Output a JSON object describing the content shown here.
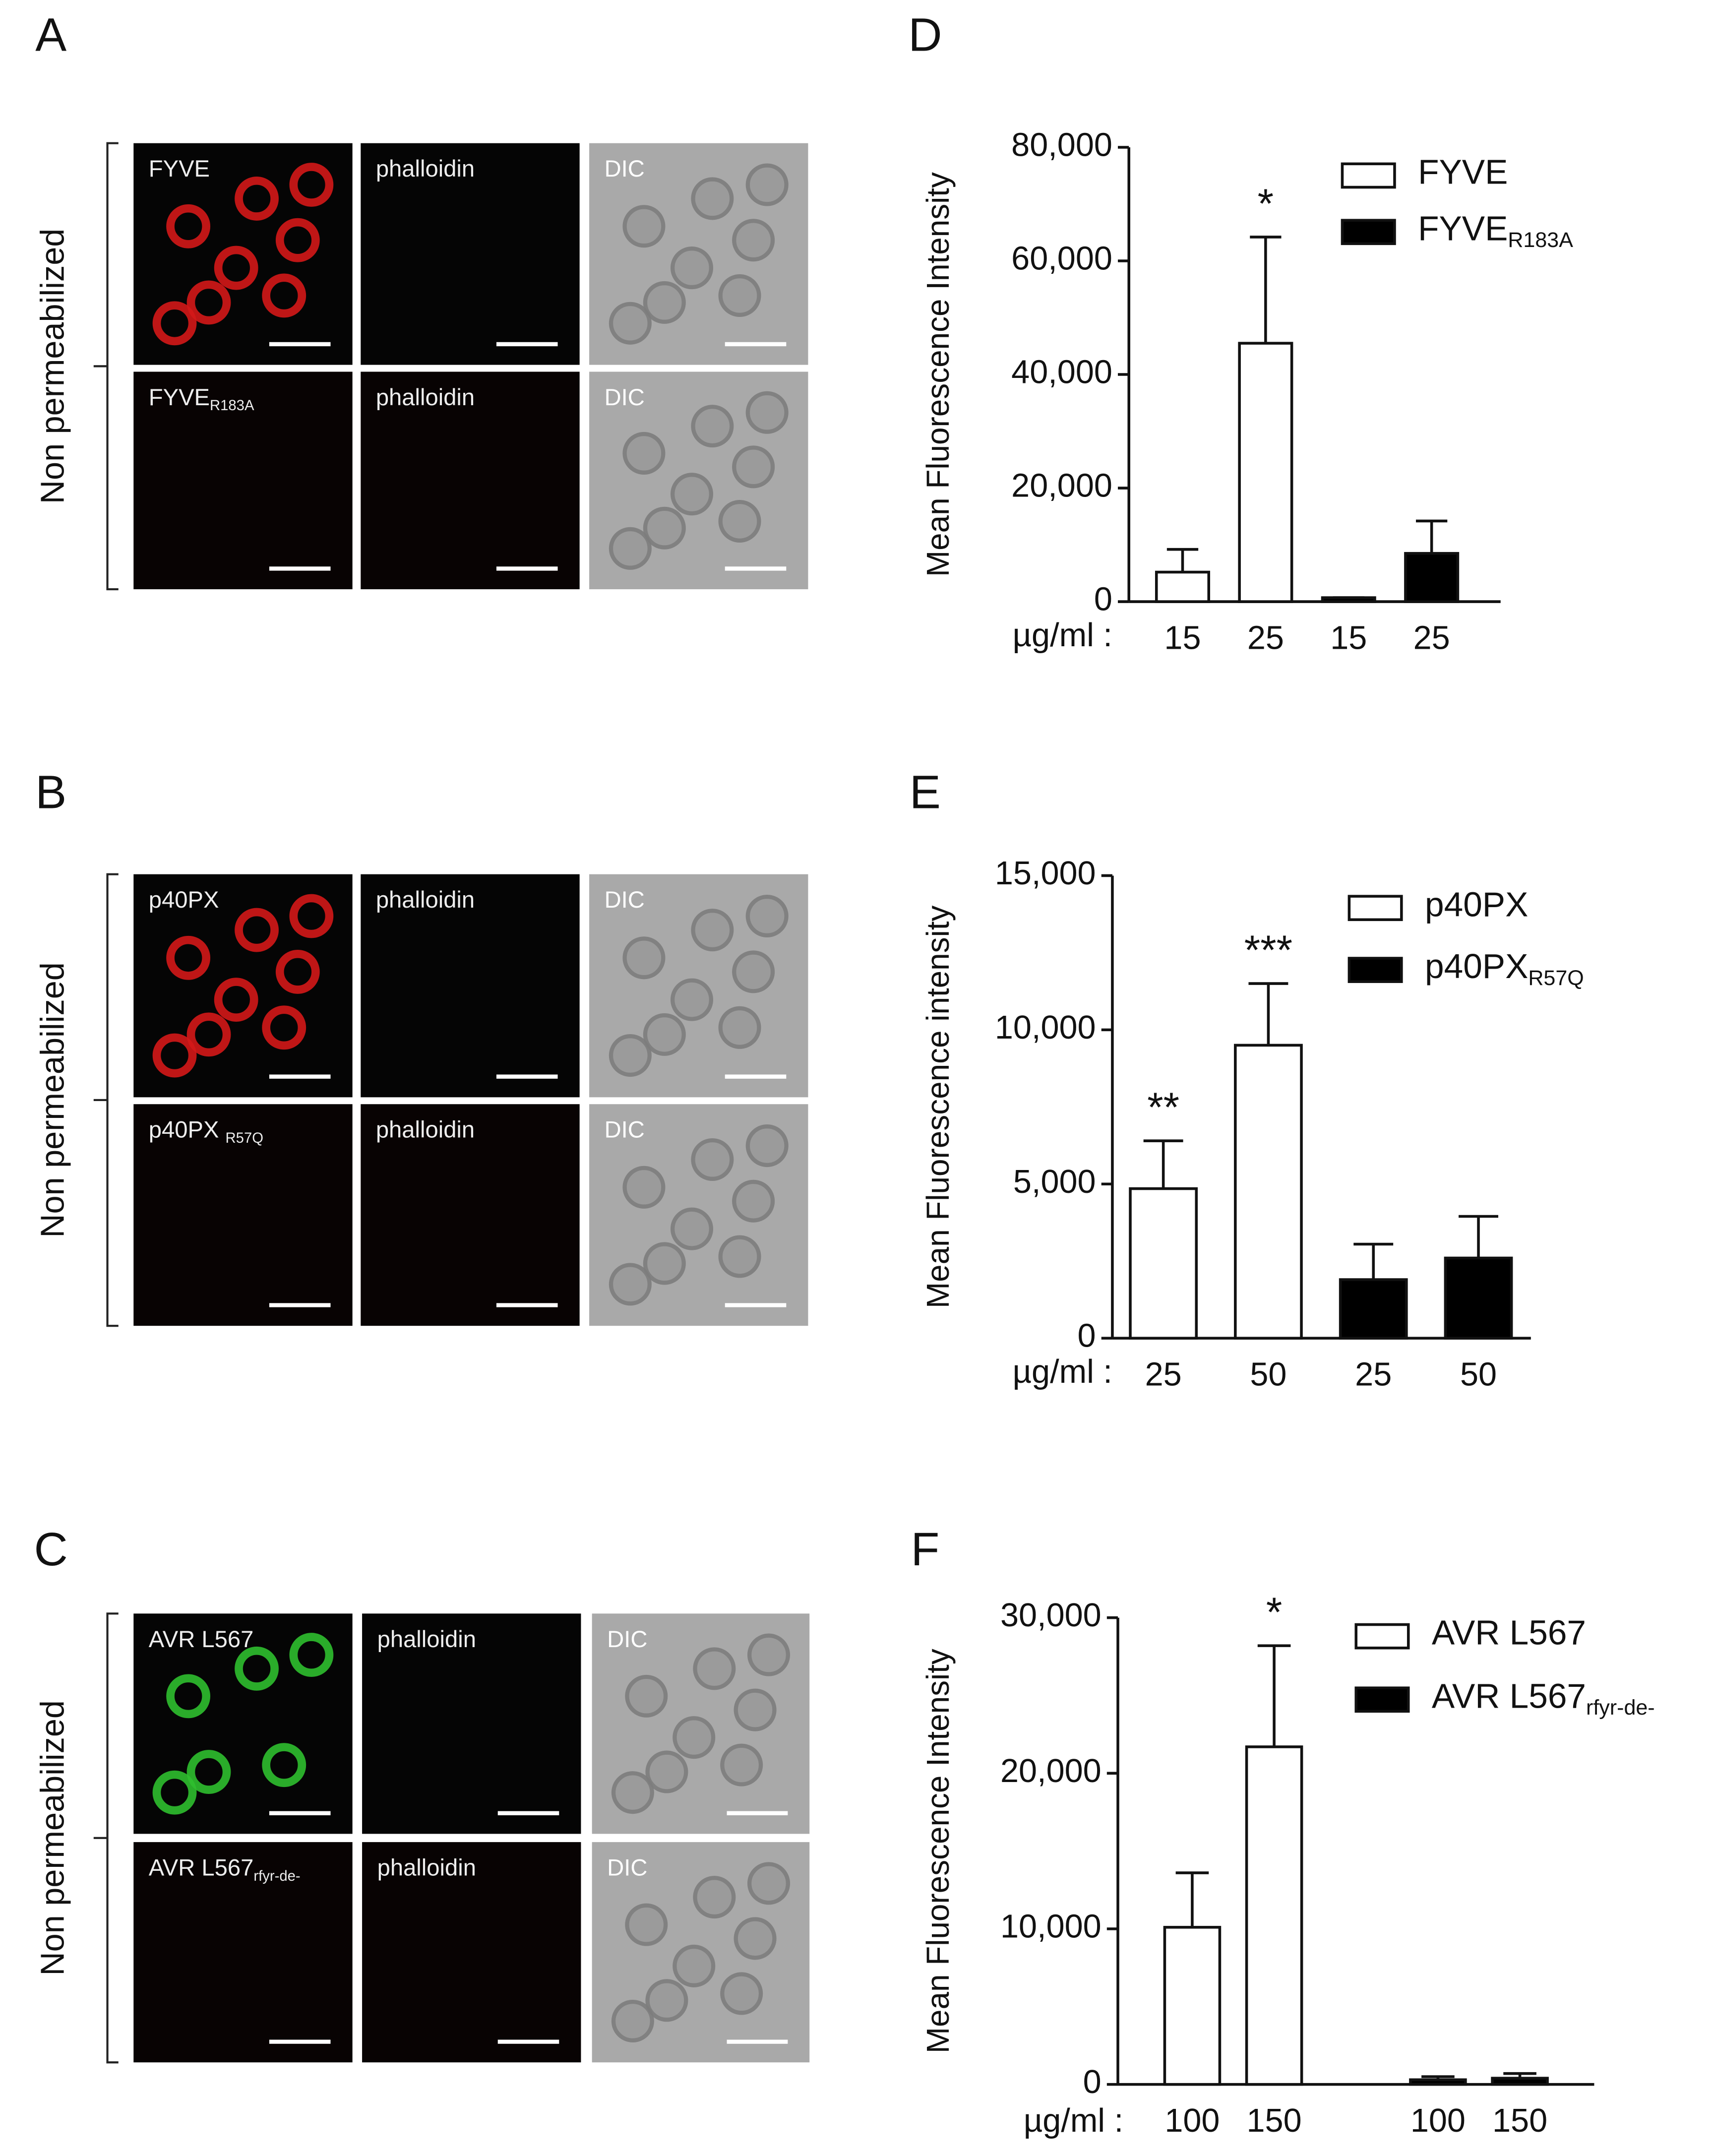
{
  "panel_letters": [
    "A",
    "B",
    "C",
    "D",
    "E",
    "F"
  ],
  "micrographs": [
    {
      "side_label": "Non permeabilized",
      "rows": [
        [
          {
            "text": "FYVE"
          },
          {
            "text": "phalloidin"
          },
          {
            "text": "DIC"
          }
        ],
        [
          {
            "text": "FYVE",
            "sub": "R183A"
          },
          {
            "text": "phalloidin"
          },
          {
            "text": "DIC"
          }
        ]
      ]
    },
    {
      "side_label": "Non permeabilized",
      "rows": [
        [
          {
            "text": "p40PX"
          },
          {
            "text": "phalloidin"
          },
          {
            "text": "DIC"
          }
        ],
        [
          {
            "text": "p40PX ",
            "sub": "R57Q"
          },
          {
            "text": "phalloidin"
          },
          {
            "text": "DIC"
          }
        ]
      ]
    },
    {
      "side_label": "Non permeabilized",
      "rows": [
        [
          {
            "text": "AVR L567"
          },
          {
            "text": "phalloidin"
          },
          {
            "text": "DIC"
          }
        ],
        [
          {
            "text": "AVR L567",
            "sub": "rfyr-de-"
          },
          {
            "text": "phalloidin"
          },
          {
            "text": "DIC"
          }
        ]
      ]
    }
  ],
  "chart_data": [
    {
      "type": "bar",
      "ylabel": "Mean Fluorescence Intensity",
      "xlabel": "µg/ml :",
      "categories": [
        "15",
        "25",
        "15",
        "25"
      ],
      "ylim": [
        0,
        80000
      ],
      "yticks": [
        0,
        {
          "value": 20000,
          "label": "20,000"
        },
        {
          "value": 40000,
          "label": "40,000"
        },
        {
          "value": 60000,
          "label": "60,000"
        },
        {
          "value": 80000,
          "label": "80,000"
        }
      ],
      "series": [
        {
          "name": "FYVE",
          "color": "#ffffff",
          "values": [
            5200,
            45500,
            null,
            null
          ],
          "errors": [
            4000,
            18700,
            null,
            null
          ],
          "significance": [
            null,
            "*",
            null,
            null
          ]
        },
        {
          "name": "FYVE",
          "name_sub": "R183A",
          "color": "#000000",
          "values": [
            null,
            null,
            700,
            8500
          ],
          "errors": [
            null,
            null,
            0,
            5700
          ],
          "significance": [
            null,
            null,
            null,
            null
          ]
        }
      ]
    },
    {
      "type": "bar",
      "ylabel": "Mean Fluorescence intensity",
      "xlabel": "µg/ml :",
      "categories": [
        "25",
        "50",
        "25",
        "50"
      ],
      "ylim": [
        0,
        15000
      ],
      "yticks": [
        0,
        {
          "value": 5000,
          "label": "5,000"
        },
        {
          "value": 10000,
          "label": "10,000"
        },
        {
          "value": 15000,
          "label": "15,000"
        }
      ],
      "series": [
        {
          "name": "p40PX",
          "color": "#ffffff",
          "values": [
            4850,
            9500,
            null,
            null
          ],
          "errors": [
            1550,
            2000,
            null,
            null
          ],
          "significance": [
            "**",
            "***",
            null,
            null
          ]
        },
        {
          "name": "p40PX",
          "name_sub": "R57Q",
          "color": "#000000",
          "values": [
            null,
            null,
            1900,
            2600
          ],
          "errors": [
            null,
            null,
            1150,
            1350
          ],
          "significance": [
            null,
            null,
            null,
            null
          ]
        }
      ]
    },
    {
      "type": "bar",
      "ylabel": "Mean Fluorescence Intensity",
      "xlabel": "µg/ml :",
      "categories": [
        "100",
        "150",
        null,
        "100",
        "150"
      ],
      "ylim": [
        0,
        30000
      ],
      "yticks": [
        0,
        {
          "value": 10000,
          "label": "10,000"
        },
        {
          "value": 20000,
          "label": "20,000"
        },
        {
          "value": 30000,
          "label": "30,000"
        }
      ],
      "series": [
        {
          "name": "AVR L567",
          "color": "#ffffff",
          "values": [
            10100,
            21700,
            null,
            null,
            null
          ],
          "errors": [
            3500,
            6500,
            null,
            null,
            null
          ],
          "significance": [
            null,
            "*",
            null,
            null,
            null
          ]
        },
        {
          "name": "AVR L567",
          "name_sub": "rfyr-de-",
          "color": "#000000",
          "values": [
            null,
            null,
            null,
            300,
            400
          ],
          "errors": [
            null,
            null,
            null,
            200,
            300
          ],
          "significance": [
            null,
            null,
            null,
            null,
            null
          ]
        }
      ]
    }
  ]
}
